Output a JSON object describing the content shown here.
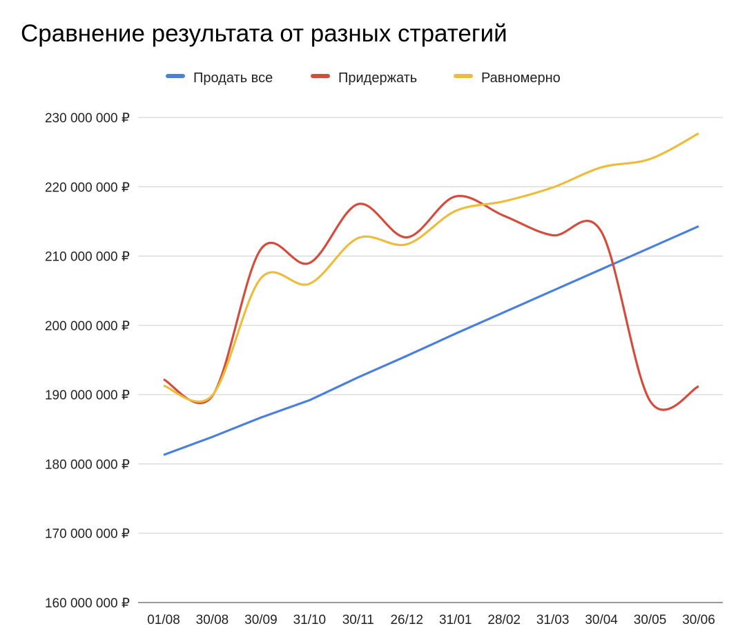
{
  "chart_data": {
    "type": "line",
    "title": "Сравнение результата от разных стратегий",
    "xlabel": "",
    "ylabel": "",
    "categories": [
      "01/08",
      "30/08",
      "30/09",
      "31/10",
      "30/11",
      "26/12",
      "31/01",
      "28/02",
      "31/03",
      "30/04",
      "30/05",
      "30/06"
    ],
    "ylim": [
      160000000,
      230000000
    ],
    "yticks": [
      160000000,
      170000000,
      180000000,
      190000000,
      200000000,
      210000000,
      220000000,
      230000000
    ],
    "ytick_labels": [
      "160 000 000 ₽",
      "170 000 000 ₽",
      "180 000 000 ₽",
      "190 000 000 ₽",
      "200 000 000 ₽",
      "210 000 000 ₽",
      "220 000 000 ₽",
      "230 000 000 ₽"
    ],
    "grid": true,
    "legend_position": "top",
    "series": [
      {
        "name": "Продать все",
        "color": "#4a7fde",
        "values": [
          181300000,
          183900000,
          186700000,
          189200000,
          192500000,
          195600000,
          198800000,
          201900000,
          205000000,
          208100000,
          211200000,
          214300000
        ]
      },
      {
        "name": "Придержать",
        "color": "#d44c3b",
        "values": [
          192200000,
          189800000,
          211000000,
          209000000,
          217500000,
          212700000,
          218600000,
          215800000,
          213000000,
          213500000,
          189100000,
          191200000
        ]
      },
      {
        "name": "Равномерно",
        "color": "#ecbd3c",
        "values": [
          191300000,
          189900000,
          206800000,
          206000000,
          212600000,
          211700000,
          216500000,
          217900000,
          219900000,
          222800000,
          224000000,
          227700000
        ]
      }
    ]
  }
}
